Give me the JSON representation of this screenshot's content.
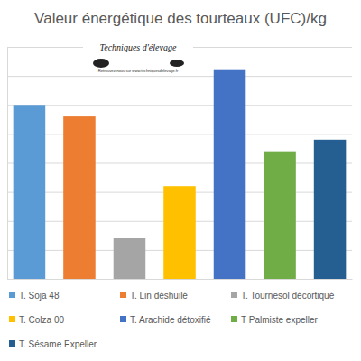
{
  "chart_data": {
    "type": "bar",
    "title": "Valeur énergétique des tourteaux (UFC)/kg",
    "annotations": [
      "Techniques d'élevage",
      "Retrouvez-nous sur www.techniquesdelevage.fr"
    ],
    "categories": [
      "T. Soja 48",
      "T. Lin déshuilé",
      "T. Tournesol décortiqué",
      "T. Colza 00",
      "T. Arachide détoxifié",
      "T Palmiste expeller",
      "T. Sésame Expeller"
    ],
    "values": [
      1.2,
      1.16,
      0.74,
      0.92,
      1.32,
      1.04,
      1.08
    ],
    "colors": [
      "#5b9bd5",
      "#ed7d31",
      "#a5a5a5",
      "#ffc000",
      "#4472c4",
      "#70ad47",
      "#255e91"
    ],
    "ylim": [
      0.6,
      1.4
    ],
    "yticks": [
      0.6,
      0.7,
      0.8,
      0.9,
      1.0,
      1.1,
      1.2,
      1.3,
      1.4
    ],
    "grid": true,
    "tick_labels": false,
    "legend": "bottom"
  }
}
